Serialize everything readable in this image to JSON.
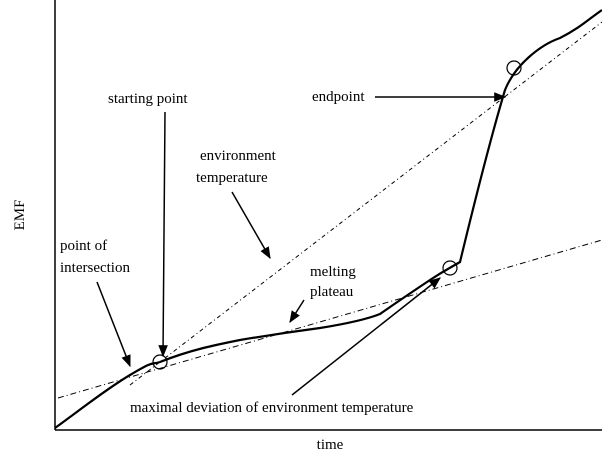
{
  "axes": {
    "y_label": "EMF",
    "x_label": "time"
  },
  "annotations": {
    "starting_point": "starting point",
    "endpoint": "endpoint",
    "environment_temperature": [
      "environment",
      "temperature"
    ],
    "point_of_intersection": [
      "point of",
      "intersection"
    ],
    "melting_plateau": [
      "melting",
      "plateau"
    ],
    "maximal_deviation": "maximal deviation of environment temperature"
  }
}
